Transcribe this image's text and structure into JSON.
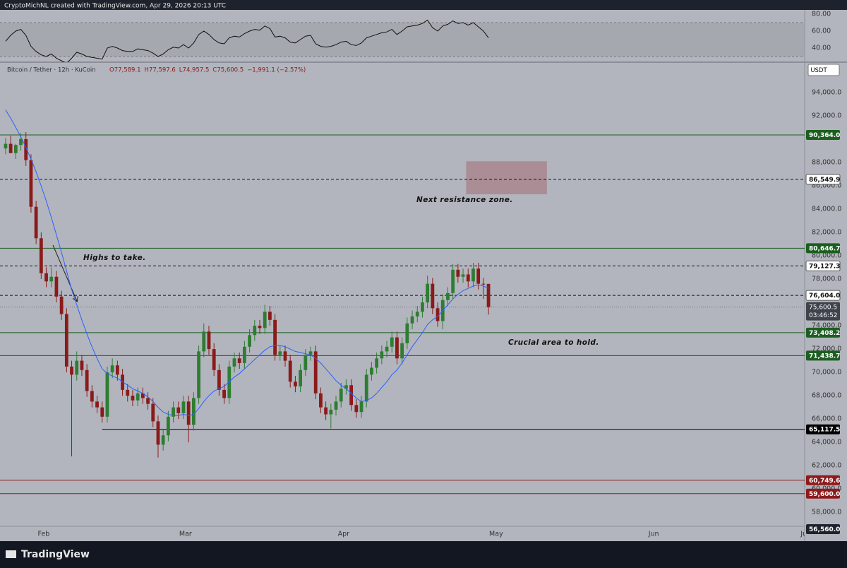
{
  "header": "CryptoMichNL created with TradingView.com, Apr 29, 2026 20:13 UTC",
  "brand": "TradingView",
  "chart_data": [
    {
      "type": "candlestick",
      "symbol": "Bitcoin / Tether · 12h · KuCoin",
      "legend": [
        "O77,589.1",
        "H77,597.6",
        "L74,957.5",
        "C75,600.5",
        "−1,991.1 (−2.57%)"
      ],
      "currency": "USDT",
      "x": [
        0,
        1,
        2,
        3,
        4,
        5,
        6,
        7,
        8,
        9,
        10,
        11,
        12,
        13,
        14,
        15,
        16,
        17,
        18,
        19,
        20,
        21,
        22,
        23,
        24,
        25,
        26,
        27,
        28,
        29,
        30,
        31,
        32,
        33,
        34,
        35,
        36,
        37,
        38,
        39,
        40,
        41,
        42,
        43,
        44,
        45,
        46,
        47,
        48,
        49,
        50,
        51,
        52,
        53,
        54,
        55,
        56,
        57,
        58,
        59,
        60,
        61,
        62,
        63,
        64,
        65,
        66,
        67,
        68,
        69,
        70,
        71,
        72,
        73,
        74,
        75,
        76,
        77,
        78,
        79,
        80,
        81,
        82,
        83,
        84,
        85,
        86,
        87,
        88,
        89,
        90,
        91,
        92,
        93,
        94,
        95
      ],
      "series": [
        {
          "name": "Bitcoin / Tether",
          "up_color": "#2e7d32",
          "down_color": "#8b1a1a",
          "open": [
            89200,
            89600,
            88800,
            89500,
            90000,
            88200,
            84200,
            81500,
            78500,
            77800,
            78200,
            76500,
            75000,
            70500,
            69800,
            71000,
            70200,
            68400,
            67500,
            67000,
            66200,
            70000,
            70600,
            69800,
            68500,
            68000,
            67600,
            68200,
            67800,
            67300,
            65800,
            63800,
            64600,
            66200,
            67000,
            66500,
            67500,
            65500,
            67800,
            71800,
            73500,
            72000,
            70200,
            68500,
            67800,
            70500,
            71200,
            70800,
            72200,
            73200,
            74000,
            73800,
            75200,
            74500,
            71500,
            71800,
            71000,
            69200,
            68800,
            70200,
            71500,
            71800,
            68200,
            67000,
            66400,
            66800,
            67500,
            68600,
            68900,
            67200,
            66600,
            67500,
            69800,
            70400,
            71200,
            71800,
            72200,
            73000,
            71200,
            72500,
            74200,
            74800,
            75200,
            76000,
            77600,
            75500,
            74400,
            76200,
            76800,
            78800,
            78200,
            78400,
            77800,
            78900,
            77600,
            77589.1
          ],
          "high": [
            90100,
            90300,
            89600,
            90500,
            90600,
            88700,
            84700,
            82000,
            79000,
            79000,
            78700,
            77000,
            75500,
            71000,
            71800,
            71500,
            70700,
            68900,
            68000,
            67500,
            70500,
            71200,
            71000,
            70300,
            69000,
            68500,
            68700,
            68700,
            68300,
            67800,
            66300,
            65100,
            66700,
            67500,
            67500,
            68000,
            68000,
            68300,
            72300,
            74200,
            74000,
            72500,
            70700,
            69000,
            71000,
            71700,
            71700,
            72700,
            73700,
            74500,
            74500,
            75800,
            75700,
            75000,
            72300,
            72300,
            71500,
            69700,
            70700,
            72000,
            72200,
            72300,
            68700,
            67500,
            67300,
            68000,
            69100,
            69400,
            69400,
            67700,
            68000,
            70300,
            70900,
            71700,
            72300,
            72700,
            73500,
            73500,
            73000,
            74700,
            75300,
            75700,
            76500,
            78300,
            78100,
            76000,
            76700,
            77300,
            79300,
            79300,
            78900,
            78900,
            79400,
            79400,
            78100,
            77597.6
          ],
          "low": [
            88700,
            89000,
            88300,
            89000,
            87700,
            83700,
            81000,
            78000,
            77300,
            77300,
            76000,
            74500,
            70000,
            62800,
            69300,
            69700,
            67900,
            67000,
            66500,
            65700,
            65700,
            69500,
            69300,
            68000,
            67500,
            67100,
            67100,
            67300,
            66800,
            65300,
            62700,
            63300,
            64100,
            65700,
            66000,
            66000,
            64000,
            65000,
            67300,
            71300,
            71500,
            69700,
            68000,
            67300,
            67300,
            70000,
            70300,
            70300,
            71700,
            72700,
            73300,
            73300,
            74000,
            71000,
            71000,
            70500,
            68700,
            68300,
            68300,
            69700,
            71000,
            67700,
            66500,
            65900,
            65200,
            66300,
            67000,
            68100,
            66700,
            66100,
            66100,
            67000,
            69300,
            69900,
            70700,
            71300,
            71700,
            70700,
            70700,
            72000,
            73700,
            74300,
            74700,
            75500,
            75000,
            73900,
            73700,
            75700,
            76300,
            77700,
            77700,
            77300,
            77300,
            77100,
            76300,
            74957.5
          ],
          "close": [
            89600,
            88800,
            89500,
            90000,
            88200,
            84200,
            81500,
            78500,
            77800,
            78200,
            76500,
            75000,
            70500,
            69800,
            71000,
            70200,
            68400,
            67500,
            67000,
            66200,
            70000,
            70600,
            69800,
            68500,
            68000,
            67600,
            68200,
            67800,
            67300,
            65800,
            63800,
            64600,
            66200,
            67000,
            66500,
            67500,
            65500,
            67800,
            71800,
            73500,
            72000,
            70200,
            68500,
            67800,
            70500,
            71200,
            70800,
            72200,
            73200,
            74000,
            73800,
            75200,
            74500,
            71500,
            71800,
            71000,
            69200,
            68800,
            70200,
            71500,
            71800,
            68200,
            67000,
            66400,
            66800,
            67500,
            68600,
            68900,
            67200,
            66600,
            67500,
            69800,
            70400,
            71200,
            71800,
            72200,
            73000,
            71200,
            72500,
            74200,
            74800,
            75200,
            76000,
            77600,
            75500,
            74400,
            76200,
            76800,
            78800,
            78200,
            78400,
            77800,
            78900,
            77600,
            77589.1,
            75600.5
          ]
        }
      ],
      "overlay": {
        "color": "#2962ff",
        "values": [
          92500,
          91800,
          91000,
          90200,
          89300,
          88300,
          87200,
          86000,
          84700,
          83300,
          81800,
          80300,
          78700,
          77100,
          75800,
          74500,
          73300,
          72200,
          71200,
          70300,
          69900,
          69700,
          69500,
          69200,
          68900,
          68600,
          68400,
          68200,
          67900,
          67500,
          67000,
          66600,
          66400,
          66300,
          66300,
          66400,
          66300,
          66400,
          66900,
          67500,
          68000,
          68400,
          68600,
          68800,
          69200,
          69600,
          69900,
          70300,
          70700,
          71100,
          71500,
          71900,
          72200,
          72300,
          72300,
          72200,
          72000,
          71800,
          71700,
          71600,
          71500,
          71200,
          70800,
          70300,
          69800,
          69300,
          68900,
          68600,
          68200,
          67800,
          67500,
          67600,
          67800,
          68200,
          68700,
          69200,
          69800,
          70200,
          70800,
          71500,
          72200,
          72800,
          73400,
          74100,
          74500,
          74800,
          75300,
          75800,
          76300,
          76700,
          77000,
          77200,
          77400,
          77500,
          77400,
          77200
        ]
      },
      "xlim": [
        -1.1,
        157.2
      ],
      "xticks": [
        {
          "value": 7.5,
          "label": "Feb"
        },
        {
          "value": 35.4,
          "label": "Mar"
        },
        {
          "value": 66.5,
          "label": "Apr"
        },
        {
          "value": 96.5,
          "label": "May"
        },
        {
          "value": 127.5,
          "label": "Jun"
        },
        {
          "value": 157.2,
          "label": "Jul"
        }
      ],
      "ylim": [
        56800,
        96600
      ],
      "yticks": [
        {
          "value": 58000,
          "label": "58,000.0"
        },
        {
          "value": 60000,
          "label": "60,000.0"
        },
        {
          "value": 62000,
          "label": "62,000.0"
        },
        {
          "value": 64000,
          "label": "64,000.0"
        },
        {
          "value": 66000,
          "label": "66,000.0"
        },
        {
          "value": 68000,
          "label": "68,000.0"
        },
        {
          "value": 70000,
          "label": "70,000.0"
        },
        {
          "value": 72000,
          "label": "72,000.0"
        },
        {
          "value": 74000,
          "label": "74,000.0"
        },
        {
          "value": 78000,
          "label": "78,000.0"
        },
        {
          "value": 80000,
          "label": "80,000.0"
        },
        {
          "value": 82000,
          "label": "82,000.0"
        },
        {
          "value": 84000,
          "label": "84,000.0"
        },
        {
          "value": 86000,
          "label": "86,000.0"
        },
        {
          "value": 88000,
          "label": "88,000.0"
        },
        {
          "value": 92000,
          "label": "92,000.0"
        },
        {
          "value": 94000,
          "label": "94,000.0"
        }
      ],
      "levels": [
        {
          "value": 90364,
          "label": "90,364.0",
          "color": "#1b5e20",
          "style": "solid"
        },
        {
          "value": 86549.9,
          "label": "86,549.9",
          "color": "#111111",
          "style": "dashed"
        },
        {
          "value": 80646.7,
          "label": "80,646.7",
          "color": "#1b5e20",
          "style": "solid"
        },
        {
          "value": 79127.3,
          "label": "79,127.3",
          "color": "#111111",
          "style": "dashed"
        },
        {
          "value": 76604,
          "label": "76,604.0",
          "color": "#111111",
          "style": "dashed"
        },
        {
          "value": 73408.2,
          "label": "73,408.2",
          "color": "#1b5e20",
          "style": "solid"
        },
        {
          "value": 71438.7,
          "label": "71,438.7",
          "color": "#1b5e20",
          "style": "solid"
        },
        {
          "value": 65117.5,
          "label": "65,117.5",
          "color": "#000000",
          "style": "solid",
          "start": 19
        },
        {
          "value": 60749.6,
          "label": "60,749.6",
          "color": "#8e1b1b",
          "style": "solid"
        },
        {
          "value": 59600,
          "label": "59,600.0",
          "color": "#8e1b1b",
          "style": "solid"
        },
        {
          "value": 56560,
          "label": "56,560.0",
          "color": "#1e222d",
          "style": "none"
        }
      ],
      "last_price": {
        "value": 75600.5,
        "label": "75,600.5",
        "countdown": "03:46:52"
      },
      "zone": {
        "from": 85270,
        "to": 88100,
        "x": [
          90.6,
          106.5
        ],
        "color": "#a8868e"
      },
      "annotations": [
        "Highs to take.",
        "Next resistance zone.",
        "Crucial area to hold."
      ]
    },
    {
      "type": "line",
      "color": "#111111",
      "values": [
        48,
        55,
        60,
        62,
        55,
        42,
        36,
        32,
        30,
        33,
        28,
        25,
        22,
        28,
        35,
        33,
        30,
        29,
        28,
        27,
        40,
        42,
        40,
        37,
        36,
        36,
        39,
        38,
        37,
        34,
        30,
        33,
        38,
        41,
        40,
        44,
        40,
        46,
        56,
        60,
        56,
        50,
        46,
        45,
        52,
        54,
        53,
        57,
        60,
        62,
        61,
        66,
        63,
        53,
        54,
        52,
        47,
        46,
        50,
        54,
        55,
        45,
        42,
        41,
        42,
        44,
        47,
        48,
        44,
        43,
        46,
        52,
        54,
        56,
        58,
        59,
        62,
        56,
        60,
        65,
        66,
        67,
        69,
        73,
        64,
        60,
        66,
        68,
        72,
        69,
        70,
        67,
        70,
        65,
        60,
        52
      ],
      "ylim": [
        25,
        85
      ],
      "yticks": [
        {
          "value": 40,
          "label": "40.00"
        },
        {
          "value": 60,
          "label": "60.00"
        },
        {
          "value": 80,
          "label": "80.00"
        }
      ],
      "band": [
        30,
        70
      ]
    }
  ]
}
